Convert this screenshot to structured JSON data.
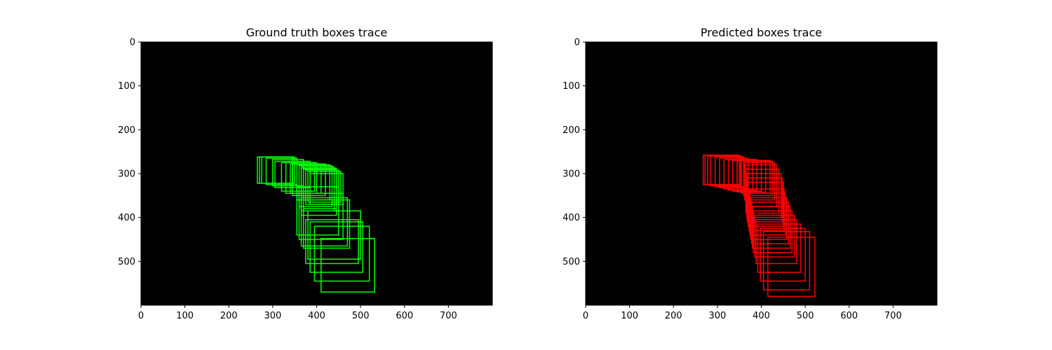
{
  "chart_data": [
    {
      "type": "image-box-trace",
      "title": "Ground truth boxes trace",
      "xlim": [
        0,
        800
      ],
      "ylim": [
        600,
        0
      ],
      "x_ticks": [
        0,
        100,
        200,
        300,
        400,
        500,
        600,
        700
      ],
      "y_ticks": [
        0,
        100,
        200,
        300,
        400,
        500
      ],
      "background": "#000000",
      "box_color": "#00ff00",
      "boxes": [
        {
          "x1": 265,
          "y1": 262,
          "x2": 345,
          "y2": 322
        },
        {
          "x1": 270,
          "y1": 262,
          "x2": 345,
          "y2": 322
        },
        {
          "x1": 275,
          "y1": 262,
          "x2": 350,
          "y2": 322
        },
        {
          "x1": 285,
          "y1": 265,
          "x2": 355,
          "y2": 325
        },
        {
          "x1": 300,
          "y1": 268,
          "x2": 370,
          "y2": 328
        },
        {
          "x1": 305,
          "y1": 272,
          "x2": 385,
          "y2": 332
        },
        {
          "x1": 320,
          "y1": 275,
          "x2": 395,
          "y2": 340
        },
        {
          "x1": 330,
          "y1": 275,
          "x2": 400,
          "y2": 345
        },
        {
          "x1": 340,
          "y1": 278,
          "x2": 410,
          "y2": 345
        },
        {
          "x1": 345,
          "y1": 278,
          "x2": 420,
          "y2": 350
        },
        {
          "x1": 355,
          "y1": 280,
          "x2": 430,
          "y2": 360
        },
        {
          "x1": 360,
          "y1": 282,
          "x2": 435,
          "y2": 375
        },
        {
          "x1": 365,
          "y1": 285,
          "x2": 440,
          "y2": 385
        },
        {
          "x1": 365,
          "y1": 288,
          "x2": 445,
          "y2": 395
        },
        {
          "x1": 370,
          "y1": 290,
          "x2": 445,
          "y2": 380
        },
        {
          "x1": 375,
          "y1": 292,
          "x2": 450,
          "y2": 370
        },
        {
          "x1": 380,
          "y1": 295,
          "x2": 455,
          "y2": 365
        },
        {
          "x1": 385,
          "y1": 300,
          "x2": 460,
          "y2": 370
        },
        {
          "x1": 355,
          "y1": 330,
          "x2": 450,
          "y2": 440
        },
        {
          "x1": 360,
          "y1": 345,
          "x2": 460,
          "y2": 450
        },
        {
          "x1": 365,
          "y1": 355,
          "x2": 470,
          "y2": 465
        },
        {
          "x1": 370,
          "y1": 360,
          "x2": 475,
          "y2": 470
        },
        {
          "x1": 380,
          "y1": 385,
          "x2": 500,
          "y2": 495
        },
        {
          "x1": 375,
          "y1": 405,
          "x2": 495,
          "y2": 505
        },
        {
          "x1": 385,
          "y1": 410,
          "x2": 505,
          "y2": 525
        },
        {
          "x1": 395,
          "y1": 420,
          "x2": 520,
          "y2": 545
        },
        {
          "x1": 410,
          "y1": 448,
          "x2": 532,
          "y2": 570
        }
      ]
    },
    {
      "type": "image-box-trace",
      "title": "Predicted boxes trace",
      "xlim": [
        0,
        800
      ],
      "ylim": [
        600,
        0
      ],
      "x_ticks": [
        0,
        100,
        200,
        300,
        400,
        500,
        600,
        700
      ],
      "y_ticks": [
        0,
        100,
        200,
        300,
        400,
        500
      ],
      "background": "#000000",
      "box_color": "#ff0000",
      "boxes": [
        {
          "x1": 268,
          "y1": 258,
          "x2": 345,
          "y2": 325
        },
        {
          "x1": 272,
          "y1": 258,
          "x2": 350,
          "y2": 325
        },
        {
          "x1": 278,
          "y1": 260,
          "x2": 352,
          "y2": 326
        },
        {
          "x1": 285,
          "y1": 260,
          "x2": 355,
          "y2": 328
        },
        {
          "x1": 295,
          "y1": 262,
          "x2": 360,
          "y2": 330
        },
        {
          "x1": 305,
          "y1": 265,
          "x2": 370,
          "y2": 332
        },
        {
          "x1": 315,
          "y1": 268,
          "x2": 380,
          "y2": 335
        },
        {
          "x1": 325,
          "y1": 268,
          "x2": 390,
          "y2": 338
        },
        {
          "x1": 335,
          "y1": 270,
          "x2": 400,
          "y2": 340
        },
        {
          "x1": 345,
          "y1": 270,
          "x2": 410,
          "y2": 342
        },
        {
          "x1": 355,
          "y1": 270,
          "x2": 420,
          "y2": 345
        },
        {
          "x1": 360,
          "y1": 272,
          "x2": 425,
          "y2": 350
        },
        {
          "x1": 362,
          "y1": 275,
          "x2": 430,
          "y2": 360
        },
        {
          "x1": 365,
          "y1": 280,
          "x2": 435,
          "y2": 375
        },
        {
          "x1": 365,
          "y1": 290,
          "x2": 440,
          "y2": 390
        },
        {
          "x1": 367,
          "y1": 300,
          "x2": 445,
          "y2": 400
        },
        {
          "x1": 368,
          "y1": 310,
          "x2": 448,
          "y2": 410
        },
        {
          "x1": 370,
          "y1": 320,
          "x2": 450,
          "y2": 420
        },
        {
          "x1": 372,
          "y1": 335,
          "x2": 452,
          "y2": 430
        },
        {
          "x1": 374,
          "y1": 345,
          "x2": 455,
          "y2": 440
        },
        {
          "x1": 376,
          "y1": 355,
          "x2": 458,
          "y2": 450
        },
        {
          "x1": 378,
          "y1": 365,
          "x2": 462,
          "y2": 460
        },
        {
          "x1": 380,
          "y1": 375,
          "x2": 466,
          "y2": 470
        },
        {
          "x1": 382,
          "y1": 385,
          "x2": 470,
          "y2": 480
        },
        {
          "x1": 385,
          "y1": 395,
          "x2": 475,
          "y2": 490
        },
        {
          "x1": 388,
          "y1": 405,
          "x2": 480,
          "y2": 505
        },
        {
          "x1": 392,
          "y1": 415,
          "x2": 490,
          "y2": 525
        },
        {
          "x1": 398,
          "y1": 425,
          "x2": 500,
          "y2": 545
        },
        {
          "x1": 405,
          "y1": 432,
          "x2": 510,
          "y2": 565
        },
        {
          "x1": 415,
          "y1": 445,
          "x2": 522,
          "y2": 580
        }
      ]
    }
  ]
}
